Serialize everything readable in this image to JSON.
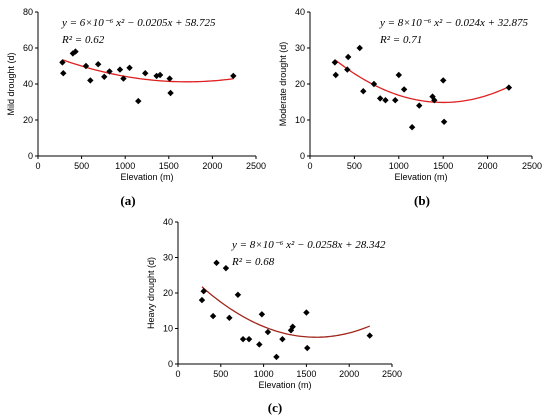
{
  "chart_data": [
    {
      "type": "scatter",
      "panel_label": "(a)",
      "xlabel": "Elevation (m)",
      "ylabel": "Mild drought  (d)",
      "xlim": [
        0,
        2500
      ],
      "ylim": [
        0,
        80
      ],
      "xticks": [
        0,
        500,
        1000,
        1500,
        2000,
        2500
      ],
      "yticks": [
        0,
        20,
        40,
        60,
        80
      ],
      "equation": "y = 6×10⁻⁶ x² − 0.0205x + 58.725",
      "r2": "R² = 0.62",
      "fit": {
        "a": 6e-06,
        "b": -0.0205,
        "c": 58.725,
        "color": "#e02020"
      },
      "points": [
        {
          "x": 280,
          "y": 52
        },
        {
          "x": 290,
          "y": 46
        },
        {
          "x": 400,
          "y": 57
        },
        {
          "x": 430,
          "y": 58
        },
        {
          "x": 550,
          "y": 50
        },
        {
          "x": 600,
          "y": 42
        },
        {
          "x": 690,
          "y": 51
        },
        {
          "x": 760,
          "y": 44
        },
        {
          "x": 820,
          "y": 47
        },
        {
          "x": 940,
          "y": 48
        },
        {
          "x": 980,
          "y": 43
        },
        {
          "x": 1050,
          "y": 49
        },
        {
          "x": 1150,
          "y": 30.5
        },
        {
          "x": 1230,
          "y": 46
        },
        {
          "x": 1360,
          "y": 44.5
        },
        {
          "x": 1400,
          "y": 45
        },
        {
          "x": 1510,
          "y": 43
        },
        {
          "x": 1520,
          "y": 35
        },
        {
          "x": 2240,
          "y": 44.5
        }
      ]
    },
    {
      "type": "scatter",
      "panel_label": "(b)",
      "xlabel": "Elevation (m)",
      "ylabel": "Moderate drought  (d)",
      "xlim": [
        0,
        2500
      ],
      "ylim": [
        0,
        40
      ],
      "xticks": [
        0,
        500,
        1000,
        1500,
        2000,
        2500
      ],
      "yticks": [
        0,
        10,
        20,
        30,
        40
      ],
      "equation": "y = 8×10⁻⁶ x² − 0.024x + 32.875",
      "r2": "R² = 0.71",
      "fit": {
        "a": 8e-06,
        "b": -0.024,
        "c": 32.875,
        "color": "#e02020"
      },
      "points": [
        {
          "x": 280,
          "y": 26
        },
        {
          "x": 290,
          "y": 22.5
        },
        {
          "x": 420,
          "y": 24
        },
        {
          "x": 430,
          "y": 27.5
        },
        {
          "x": 560,
          "y": 30
        },
        {
          "x": 600,
          "y": 18
        },
        {
          "x": 720,
          "y": 20
        },
        {
          "x": 790,
          "y": 16
        },
        {
          "x": 850,
          "y": 15.5
        },
        {
          "x": 960,
          "y": 15.5
        },
        {
          "x": 1000,
          "y": 22.5
        },
        {
          "x": 1060,
          "y": 18.5
        },
        {
          "x": 1150,
          "y": 8
        },
        {
          "x": 1230,
          "y": 14
        },
        {
          "x": 1380,
          "y": 16.5
        },
        {
          "x": 1400,
          "y": 15.5
        },
        {
          "x": 1500,
          "y": 21
        },
        {
          "x": 1510,
          "y": 9.5
        },
        {
          "x": 2240,
          "y": 19
        }
      ]
    },
    {
      "type": "scatter",
      "panel_label": "(c)",
      "xlabel": "Elevation (m)",
      "ylabel": "Heavy drought  (d)",
      "xlim": [
        0,
        2500
      ],
      "ylim": [
        0,
        40
      ],
      "xticks": [
        0,
        500,
        1000,
        1500,
        2000,
        2500
      ],
      "yticks": [
        0,
        10,
        20,
        30,
        40
      ],
      "equation": "y = 8×10⁻⁶ x² − 0.0258x + 28.342",
      "r2": "R² = 0.68",
      "fit": {
        "a": 8e-06,
        "b": -0.0258,
        "c": 28.342,
        "color": "#a0281c"
      },
      "points": [
        {
          "x": 280,
          "y": 18
        },
        {
          "x": 300,
          "y": 20.5
        },
        {
          "x": 410,
          "y": 13.5
        },
        {
          "x": 450,
          "y": 28.5
        },
        {
          "x": 560,
          "y": 27
        },
        {
          "x": 600,
          "y": 13
        },
        {
          "x": 700,
          "y": 19.5
        },
        {
          "x": 760,
          "y": 7
        },
        {
          "x": 830,
          "y": 7
        },
        {
          "x": 950,
          "y": 5.5
        },
        {
          "x": 980,
          "y": 14
        },
        {
          "x": 1050,
          "y": 9
        },
        {
          "x": 1150,
          "y": 2
        },
        {
          "x": 1220,
          "y": 7
        },
        {
          "x": 1320,
          "y": 9.5
        },
        {
          "x": 1340,
          "y": 10.5
        },
        {
          "x": 1500,
          "y": 14.5
        },
        {
          "x": 1510,
          "y": 4.5
        },
        {
          "x": 2240,
          "y": 8
        }
      ]
    }
  ]
}
